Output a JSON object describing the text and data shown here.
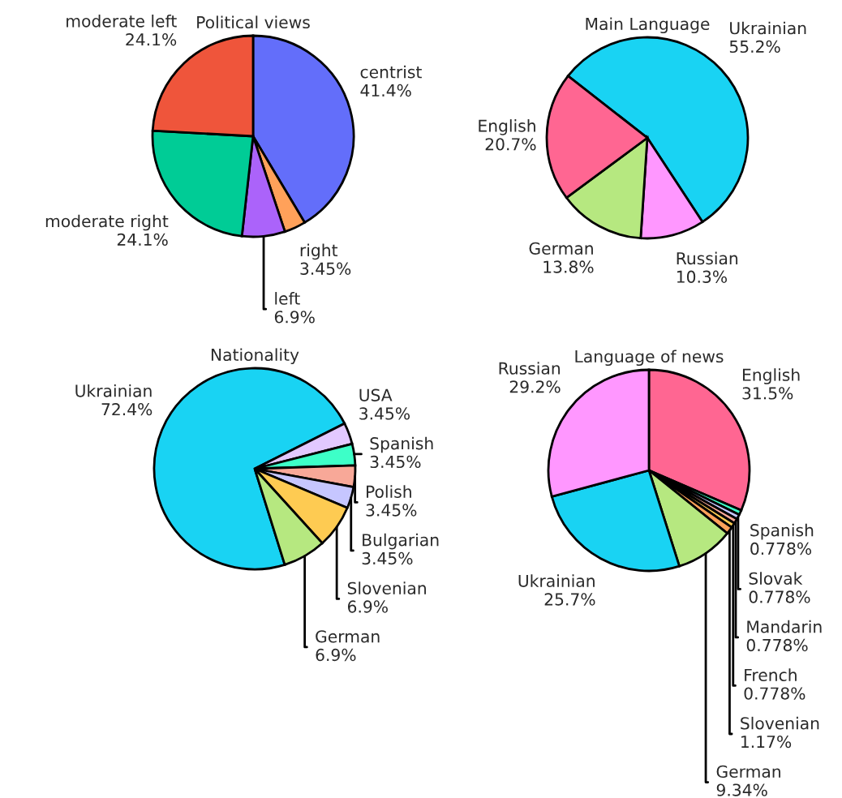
{
  "chart_data": [
    {
      "type": "pie",
      "title": "Political views",
      "categories": [
        "centrist",
        "right",
        "left",
        "moderate right",
        "moderate left"
      ],
      "values": [
        41.4,
        3.45,
        6.9,
        24.1,
        24.1
      ],
      "value_labels": [
        "41.4%",
        "3.45%",
        "6.9%",
        "24.1%",
        "24.1%"
      ],
      "colors": [
        "#636efa",
        "#ffa15a",
        "#ab63fa",
        "#00cc96",
        "#ef553b"
      ]
    },
    {
      "type": "pie",
      "title": "Main Language",
      "categories": [
        "Ukrainian",
        "Russian",
        "German",
        "English"
      ],
      "values": [
        55.2,
        10.3,
        13.8,
        20.7
      ],
      "value_labels": [
        "55.2%",
        "10.3%",
        "13.8%",
        "20.7%"
      ],
      "colors": [
        "#19d3f3",
        "#ff97ff",
        "#b6e880",
        "#ff6692"
      ]
    },
    {
      "type": "pie",
      "title": "Nationality",
      "categories": [
        "Ukrainian",
        "USA",
        "Spanish",
        "Polish",
        "Bulgarian",
        "Slovenian",
        "German"
      ],
      "values": [
        72.4,
        3.45,
        3.45,
        3.45,
        3.45,
        6.9,
        6.9
      ],
      "value_labels": [
        "72.4%",
        "3.45%",
        "3.45%",
        "3.45%",
        "3.45%",
        "6.9%",
        "6.9%"
      ],
      "colors": [
        "#19d3f3",
        "#e2c8ff",
        "#3dffc8",
        "#f8a898",
        "#c6c6ff",
        "#fecb52",
        "#b6e880"
      ]
    },
    {
      "type": "pie",
      "title": "Language of news",
      "categories": [
        "English",
        "Spanish",
        "Slovak",
        "Mandarin",
        "French",
        "Slovenian",
        "German",
        "Ukrainian",
        "Russian"
      ],
      "values": [
        31.5,
        0.778,
        0.778,
        0.778,
        0.778,
        1.17,
        9.34,
        25.7,
        29.2
      ],
      "value_labels": [
        "31.5%",
        "0.778%",
        "0.778%",
        "0.778%",
        "0.778%",
        "1.17%",
        "9.34%",
        "25.7%",
        "29.2%"
      ],
      "colors": [
        "#ff6692",
        "#3dffc8",
        "#c6c6ff",
        "#f8a898",
        "#fecb52",
        "#ffa15a",
        "#b6e880",
        "#19d3f3",
        "#ff97ff"
      ]
    }
  ]
}
